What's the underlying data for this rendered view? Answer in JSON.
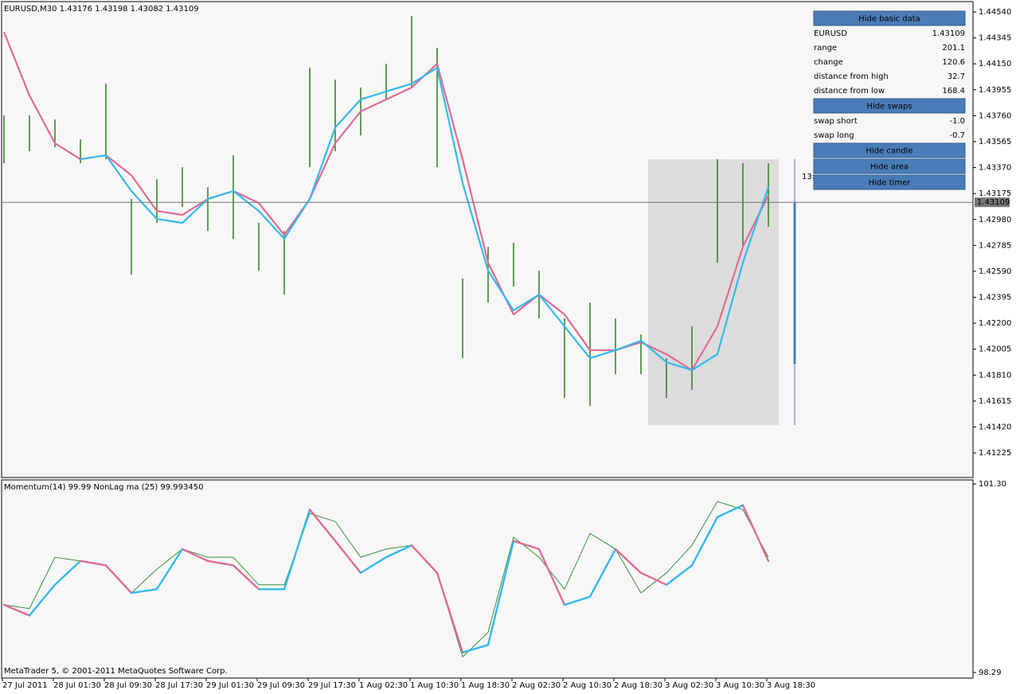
{
  "chart_data": [
    {
      "type": "price",
      "title": "EURUSD,M30  1.43176 1.43198 1.43082 1.43109",
      "ylim": [
        1.4104,
        1.44618
      ],
      "yticks": [
        {
          "value": 1.4454,
          "label": "1.44540"
        },
        {
          "value": 1.44345,
          "label": "1.44345"
        },
        {
          "value": 1.4415,
          "label": "1.44150"
        },
        {
          "value": 1.43955,
          "label": "1.43955"
        },
        {
          "value": 1.4376,
          "label": "1.43760"
        },
        {
          "value": 1.43565,
          "label": "1.43565"
        },
        {
          "value": 1.4337,
          "label": "1.43370"
        },
        {
          "value": 1.43175,
          "label": "1.43175"
        },
        {
          "value": 1.4298,
          "label": "1.42980"
        },
        {
          "value": 1.42785,
          "label": "1.42785"
        },
        {
          "value": 1.4259,
          "label": "1.42590"
        },
        {
          "value": 1.42395,
          "label": "1.42395"
        },
        {
          "value": 1.422,
          "label": "1.42200"
        },
        {
          "value": 1.42005,
          "label": "1.42005"
        },
        {
          "value": 1.4181,
          "label": "1.41810"
        },
        {
          "value": 1.41615,
          "label": "1.41615"
        },
        {
          "value": 1.4142,
          "label": "1.41420"
        },
        {
          "value": 1.41225,
          "label": "1.41225"
        }
      ],
      "bar_color": "#2e7d1e",
      "high": [
        1.43762,
        1.43762,
        1.43732,
        1.43583,
        1.44001,
        1.43134,
        1.43283,
        1.43373,
        1.43223,
        1.43463,
        1.42954,
        1.42894,
        1.44121,
        1.44031,
        1.43972,
        1.44151,
        1.4451,
        1.44271,
        1.42535,
        1.42775,
        1.42805,
        1.42595,
        1.42236,
        1.42356,
        1.42236,
        1.42116,
        1.41937,
        1.42176,
        1.43433,
        1.43403,
        1.43403
      ],
      "low": [
        1.43403,
        1.43493,
        1.43523,
        1.43403,
        1.43433,
        1.42565,
        1.42954,
        1.43074,
        1.42894,
        1.42835,
        1.42595,
        1.42416,
        1.43373,
        1.43493,
        1.43612,
        1.43882,
        1.43972,
        1.43373,
        1.41937,
        1.42356,
        1.42476,
        1.42236,
        1.41638,
        1.41578,
        1.41817,
        1.41817,
        1.41638,
        1.41698,
        1.42655,
        1.42775,
        1.42924
      ],
      "series": [
        {
          "color": "#de6b95",
          "values": [
            1.4439,
            1.43912,
            1.43553,
            1.43433,
            1.43463,
            1.43313,
            1.43044,
            1.43014,
            1.43134,
            1.43194,
            1.43104,
            1.42864,
            1.43134,
            1.43553,
            1.43792,
            1.43882,
            1.43972,
            1.44151,
            1.43433,
            1.42655,
            1.42266,
            1.42416,
            1.42266,
            1.41997,
            1.41997,
            1.42057,
            1.41967,
            1.41847,
            1.42176,
            1.42775,
            1.43164
          ]
        },
        {
          "color": "#33b9ec",
          "values": [
            null,
            null,
            null,
            1.43433,
            1.43463,
            1.43194,
            1.42984,
            1.42954,
            1.43134,
            1.43194,
            1.43044,
            1.42835,
            1.43134,
            1.43672,
            1.43882,
            1.43942,
            1.44001,
            1.44121,
            1.43253,
            1.42595,
            1.42296,
            1.42416,
            1.42176,
            1.41937,
            1.41997,
            1.42069,
            1.41907,
            1.41847,
            1.41967,
            1.42655,
            1.43223
          ]
        }
      ],
      "last": 1.43109,
      "area": {
        "high": 1.43433,
        "low": 1.41434,
        "color": "#dcdcdc"
      },
      "candle": {
        "open": 1.41895,
        "close": 1.43109,
        "high": 1.43433,
        "low": 1.41434,
        "color": "#3d7fc1"
      },
      "timer": "13:"
    },
    {
      "type": "momentum",
      "title": "Momentum(14) 99.99 NonLag ma (25) 99.993450",
      "categories": [
        "27 Jul 2011",
        null,
        "28 Jul 01:30",
        null,
        "28 Jul 09:30",
        null,
        "28 Jul 17:30",
        null,
        "29 Jul 01:30",
        null,
        "29 Jul 09:30",
        null,
        "29 Jul 17:30",
        null,
        "1 Aug 02:30",
        null,
        "1 Aug 10:30",
        null,
        "1 Aug 18:30",
        null,
        "2 Aug 02:30",
        null,
        "2 Aug 10:30",
        null,
        "2 Aug 18:30",
        null,
        "3 Aug 02:30",
        null,
        "3 Aug 10:30",
        null,
        "3 Aug 18:30"
      ],
      "ylim": [
        98.201,
        101.364
      ],
      "yticks": [
        {
          "value": 101.3,
          "label": "101.30"
        },
        {
          "value": 98.29,
          "label": "98.29"
        }
      ],
      "series": [
        {
          "color": "#3a8f3a",
          "values": [
            99.37,
            99.31,
            100.13,
            100.07,
            100.0,
            99.56,
            99.94,
            100.26,
            100.13,
            100.13,
            99.69,
            99.69,
            100.83,
            100.7,
            100.13,
            100.26,
            100.32,
            99.88,
            98.54,
            98.93,
            100.45,
            100.13,
            99.62,
            100.51,
            100.26,
            99.56,
            99.88,
            100.32,
            101.02,
            100.89,
            100.13
          ]
        },
        {
          "color": "#33b9ec",
          "down_color": "#de6b95",
          "values": [
            99.37,
            99.2,
            99.69,
            100.07,
            100.0,
            99.56,
            99.62,
            100.26,
            100.07,
            100.0,
            99.62,
            99.62,
            100.89,
            100.39,
            99.88,
            100.13,
            100.32,
            99.88,
            98.61,
            98.73,
            100.39,
            100.26,
            99.37,
            99.5,
            100.26,
            99.88,
            99.69,
            100.0,
            100.77,
            100.96,
            100.07
          ]
        }
      ],
      "footer": "MetaTrader 5, © 2001-2011 MetaQuotes Software Corp."
    }
  ],
  "panel": [
    {
      "button": "Hide basic data"
    },
    {
      "label": "EURUSD",
      "value": "1.43109"
    },
    {
      "label": "range",
      "value": "201.1"
    },
    {
      "label": "change",
      "value": "120.6"
    },
    {
      "label": "distance from high",
      "value": "32.7"
    },
    {
      "label": "distance from low",
      "value": "168.4"
    },
    {
      "button": "Hide swaps"
    },
    {
      "label": "swap short",
      "value": "-1.0"
    },
    {
      "label": "swap long",
      "value": "-0.7"
    },
    {
      "button": "Hide candle"
    },
    {
      "button": "Hide area"
    },
    {
      "button": "Hide timer"
    }
  ]
}
